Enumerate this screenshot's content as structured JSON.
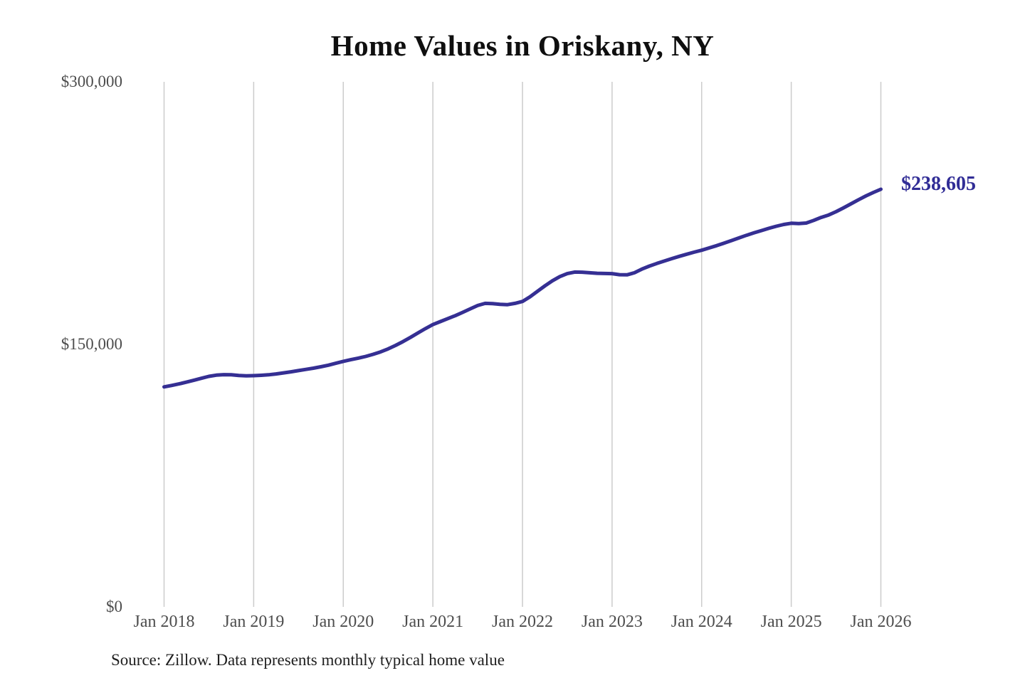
{
  "chart_data": {
    "type": "line",
    "title": "Home Values in Oriskany, NY",
    "series_name": "Monthly typical home value",
    "frequency": "monthly",
    "x_start": "Jan 2018",
    "x_end": "Jan 2026",
    "x_tick_labels": [
      "Jan 2018",
      "Jan 2019",
      "Jan 2020",
      "Jan 2021",
      "Jan 2022",
      "Jan 2023",
      "Jan 2024",
      "Jan 2025",
      "Jan 2026"
    ],
    "y_ticks": [
      {
        "label": "$0",
        "value": 0
      },
      {
        "label": "$150,000",
        "value": 150000
      },
      {
        "label": "$300,000",
        "value": 300000
      }
    ],
    "ylim": [
      0,
      300000
    ],
    "grid": "vertical-only",
    "legend": "none",
    "values": [
      125700,
      126500,
      127400,
      128400,
      129500,
      130600,
      131700,
      132400,
      132700,
      132600,
      132200,
      132000,
      132100,
      132300,
      132600,
      133100,
      133700,
      134300,
      135000,
      135700,
      136400,
      137200,
      138100,
      139200,
      140300,
      141200,
      142100,
      143100,
      144300,
      145700,
      147400,
      149400,
      151600,
      154000,
      156500,
      159000,
      161300,
      163000,
      164700,
      166400,
      168300,
      170300,
      172200,
      173400,
      173300,
      172900,
      172700,
      173400,
      174500,
      177100,
      180300,
      183400,
      186300,
      188700,
      190400,
      191300,
      191200,
      190900,
      190600,
      190500,
      190400,
      189800,
      189700,
      190900,
      193000,
      194700,
      196200,
      197600,
      199000,
      200300,
      201500,
      202700,
      203800,
      205100,
      206400,
      207800,
      209300,
      210800,
      212300,
      213700,
      215000,
      216300,
      217500,
      218500,
      219200,
      219000,
      219300,
      220800,
      222500,
      223900,
      225800,
      228000,
      230300,
      232600,
      234800,
      236800,
      238605
    ],
    "end_label": "$238,605",
    "end_value": 238605,
    "source": "Source: Zillow. Data represents monthly typical home value"
  },
  "colors": {
    "line": "#352f93",
    "end_label_text": "#312d96",
    "grid": "#cccccc",
    "axis_text": "#4d4d4d",
    "title_text": "#0f0f0f",
    "source_text": "#1e1e1e",
    "background": "#ffffff"
  }
}
